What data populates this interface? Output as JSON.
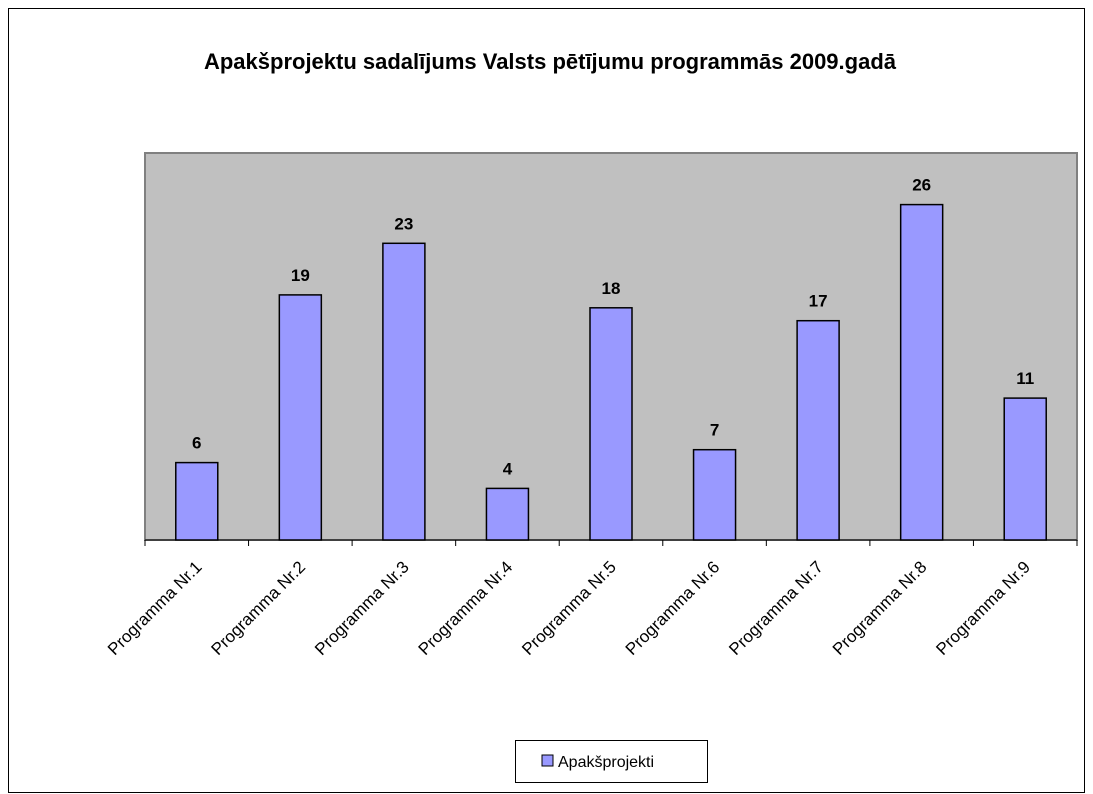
{
  "chart_data": {
    "type": "bar",
    "title": "Apakšprojektu sadalījums Valsts pētījumu programmās 2009.gadā",
    "categories": [
      "Programma Nr.1",
      "Programma Nr.2",
      "Programma Nr.3",
      "Programma Nr.4",
      "Programma Nr.5",
      "Programma Nr.6",
      "Programma Nr.7",
      "Programma Nr.8",
      "Programma Nr.9"
    ],
    "series": [
      {
        "name": "Apakšprojekti",
        "color": "#9999ff",
        "values": [
          6,
          19,
          23,
          4,
          18,
          7,
          17,
          26,
          11
        ]
      }
    ],
    "ylim": [
      0,
      30
    ],
    "legend": "bottom"
  }
}
